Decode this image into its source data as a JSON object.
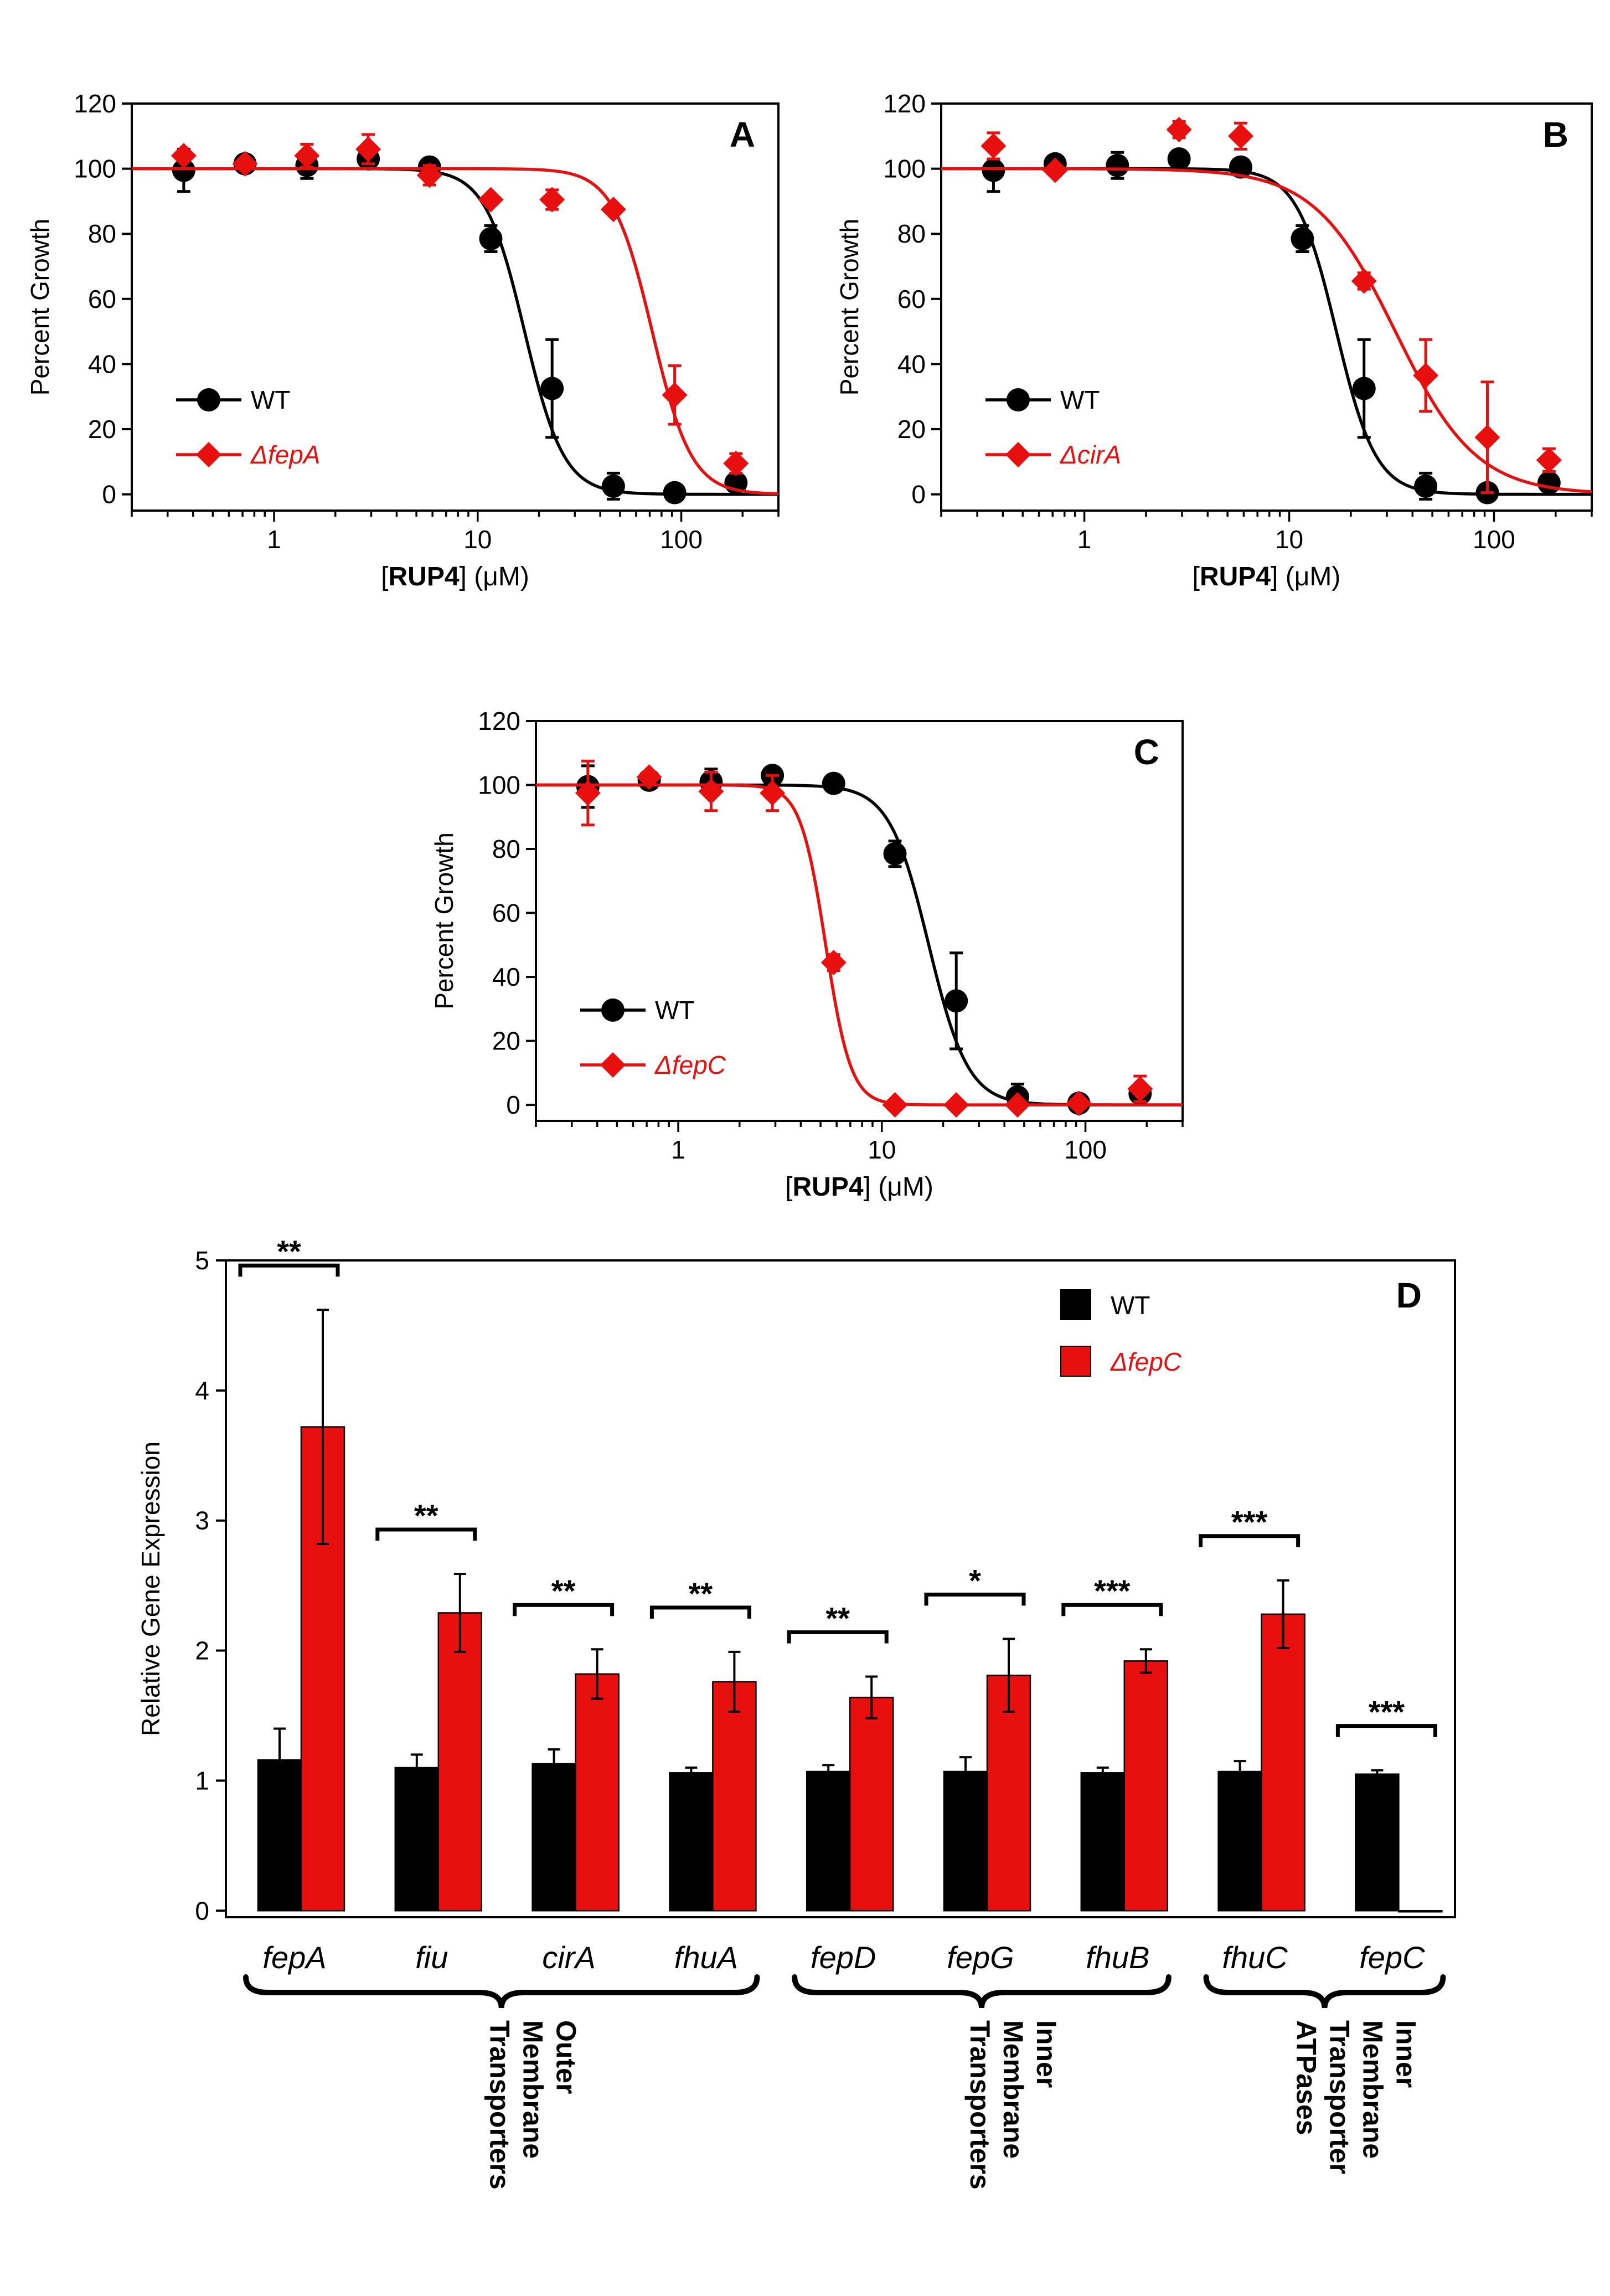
{
  "colors": {
    "wt": "#000000",
    "mutant": "#e8100f",
    "axis": "#000000"
  },
  "chart_data": [
    {
      "type": "line",
      "panel_label": "A",
      "xscale": "log",
      "xlim": [
        0.2,
        300
      ],
      "ylim": [
        -5,
        120
      ],
      "xticks": [
        1,
        10,
        100
      ],
      "xtick_labels": [
        "1",
        "10",
        "100"
      ],
      "yticks": [
        0,
        20,
        40,
        60,
        80,
        100,
        120
      ],
      "ytick_labels": [
        "0",
        "20",
        "40",
        "60",
        "80",
        "100",
        "120"
      ],
      "xlabel_prefix": "[",
      "xlabel_bold": "RUP4",
      "xlabel_suffix": "] (μM)",
      "ylabel": "Percent Growth",
      "legend_position": "bottom-left",
      "series": [
        {
          "name": "WT",
          "italic": false,
          "color_key": "wt",
          "marker": "circle",
          "x": [
            0.36,
            0.72,
            1.45,
            2.9,
            5.8,
            11.6,
            23.2,
            46.4,
            92.8,
            185.6
          ],
          "y": [
            99.5,
            101.5,
            101,
            103,
            100.5,
            78.5,
            32.5,
            2.5,
            0.5,
            3.5
          ],
          "err": [
            6.5,
            1.5,
            4,
            2,
            1.5,
            4,
            15,
            4,
            1,
            2
          ],
          "fit": {
            "top": 100,
            "bottom": 0,
            "ic50": 17,
            "hill": 4.5
          }
        },
        {
          "name": "ΔfepA",
          "italic": true,
          "color_key": "mutant",
          "marker": "diamond",
          "x": [
            0.36,
            0.72,
            1.45,
            2.9,
            5.8,
            11.6,
            23.2,
            46.4,
            92.8,
            185.6
          ],
          "y": [
            104,
            101.5,
            104,
            106,
            98,
            90.5,
            90.5,
            87.5,
            30.5,
            9.5
          ],
          "err": [
            1.5,
            1.5,
            3.5,
            4.5,
            3,
            1.5,
            3,
            1.5,
            9,
            3
          ],
          "fit": {
            "top": 100,
            "bottom": 0,
            "ic50": 72,
            "hill": 4.5
          }
        }
      ]
    },
    {
      "type": "line",
      "panel_label": "B",
      "xscale": "log",
      "xlim": [
        0.2,
        300
      ],
      "ylim": [
        -5,
        120
      ],
      "xticks": [
        1,
        10,
        100
      ],
      "xtick_labels": [
        "1",
        "10",
        "100"
      ],
      "yticks": [
        0,
        20,
        40,
        60,
        80,
        100,
        120
      ],
      "ytick_labels": [
        "0",
        "20",
        "40",
        "60",
        "80",
        "100",
        "120"
      ],
      "xlabel_prefix": "[",
      "xlabel_bold": "RUP4",
      "xlabel_suffix": "] (μM)",
      "ylabel": "Percent Growth",
      "legend_position": "bottom-left",
      "series": [
        {
          "name": "WT",
          "italic": false,
          "color_key": "wt",
          "marker": "circle",
          "x": [
            0.36,
            0.72,
            1.45,
            2.9,
            5.8,
            11.6,
            23.2,
            46.4,
            92.8,
            185.6
          ],
          "y": [
            99.5,
            101.5,
            101,
            103,
            100.5,
            78.5,
            32.5,
            2.5,
            0.5,
            3.5
          ],
          "err": [
            6.5,
            1.5,
            4,
            2,
            1.5,
            4,
            15,
            4,
            1,
            2
          ],
          "fit": {
            "top": 100,
            "bottom": 0,
            "ic50": 17,
            "hill": 4.5
          }
        },
        {
          "name": "ΔcirA",
          "italic": true,
          "color_key": "mutant",
          "marker": "diamond",
          "x": [
            0.36,
            0.72,
            2.9,
            5.8,
            23.2,
            46.4,
            92.8,
            185.6
          ],
          "y": [
            107,
            99.5,
            112,
            110,
            65.5,
            36.5,
            17.5,
            10.5
          ],
          "err": [
            4,
            1.5,
            2.5,
            4,
            2.5,
            11,
            17,
            3.5
          ],
          "fit": {
            "top": 100,
            "bottom": 0,
            "ic50": 33,
            "hill": 2.2
          }
        }
      ]
    },
    {
      "type": "line",
      "panel_label": "C",
      "xscale": "log",
      "xlim": [
        0.2,
        300
      ],
      "ylim": [
        -5,
        120
      ],
      "xticks": [
        1,
        10,
        100
      ],
      "xtick_labels": [
        "1",
        "10",
        "100"
      ],
      "yticks": [
        0,
        20,
        40,
        60,
        80,
        100,
        120
      ],
      "ytick_labels": [
        "0",
        "20",
        "40",
        "60",
        "80",
        "100",
        "120"
      ],
      "xlabel_prefix": "[",
      "xlabel_bold": "RUP4",
      "xlabel_suffix": "] (μM)",
      "ylabel": "Percent Growth",
      "legend_position": "bottom-left",
      "series": [
        {
          "name": "WT",
          "italic": false,
          "color_key": "wt",
          "marker": "circle",
          "x": [
            0.36,
            0.72,
            1.45,
            2.9,
            5.8,
            11.6,
            23.2,
            46.4,
            92.8,
            185.6
          ],
          "y": [
            99.5,
            101.5,
            101,
            103,
            100.5,
            78.5,
            32.5,
            2.5,
            0.5,
            3.5
          ],
          "err": [
            6.5,
            1.5,
            4,
            2,
            1.5,
            4,
            15,
            4,
            1,
            2
          ],
          "fit": {
            "top": 100,
            "bottom": 0,
            "ic50": 17,
            "hill": 4.5
          }
        },
        {
          "name": "ΔfepC",
          "italic": true,
          "color_key": "mutant",
          "marker": "diamond",
          "x": [
            0.36,
            0.72,
            1.45,
            2.9,
            5.8,
            11.6,
            23.2,
            46.4,
            92.8,
            185.6
          ],
          "y": [
            97.5,
            102.5,
            98,
            97.5,
            44.5,
            0,
            0,
            0,
            0.5,
            5
          ],
          "err": [
            10,
            1.5,
            6,
            5.5,
            2.5,
            0.5,
            0.5,
            0.5,
            1,
            4
          ],
          "fit": {
            "top": 100,
            "bottom": 0,
            "ic50": 5.3,
            "hill": 7
          }
        }
      ]
    },
    {
      "type": "bar",
      "panel_label": "D",
      "ylim": [
        -0.05,
        5
      ],
      "yticks": [
        0,
        1,
        2,
        3,
        4,
        5
      ],
      "ytick_labels": [
        "0",
        "1",
        "2",
        "3",
        "4",
        "5"
      ],
      "ylabel": "Relative Gene Expression",
      "legend_position": "top-right",
      "categories": [
        "fepA",
        "fiu",
        "cirA",
        "fhuA",
        "fepD",
        "fepG",
        "fhuB",
        "fhuC",
        "fepC"
      ],
      "series": [
        {
          "name": "WT",
          "italic": false,
          "color_key": "wt",
          "values": [
            1.16,
            1.1,
            1.13,
            1.06,
            1.07,
            1.07,
            1.06,
            1.07,
            1.05
          ],
          "err": [
            0.24,
            0.1,
            0.11,
            0.04,
            0.05,
            0.11,
            0.04,
            0.08,
            0.03
          ]
        },
        {
          "name": "ΔfepC",
          "italic": true,
          "color_key": "mutant",
          "values": [
            3.72,
            2.29,
            1.82,
            1.76,
            1.64,
            1.81,
            1.92,
            2.28,
            0.0
          ],
          "err": [
            0.9,
            0.3,
            0.19,
            0.23,
            0.16,
            0.28,
            0.09,
            0.26,
            0.0
          ]
        }
      ],
      "significance": [
        "**",
        "**",
        "**",
        "**",
        "**",
        "*",
        "***",
        "***",
        "***"
      ],
      "groups": [
        {
          "first": 0,
          "last": 3,
          "label_lines": [
            "Outer",
            "Membrane",
            "Transporters"
          ]
        },
        {
          "first": 4,
          "last": 6,
          "label_lines": [
            "Inner",
            "Membrane",
            "Transporters"
          ]
        },
        {
          "first": 7,
          "last": 8,
          "label_lines": [
            "Inner",
            "Membrane",
            "Transporter",
            "ATPases"
          ]
        }
      ]
    }
  ]
}
